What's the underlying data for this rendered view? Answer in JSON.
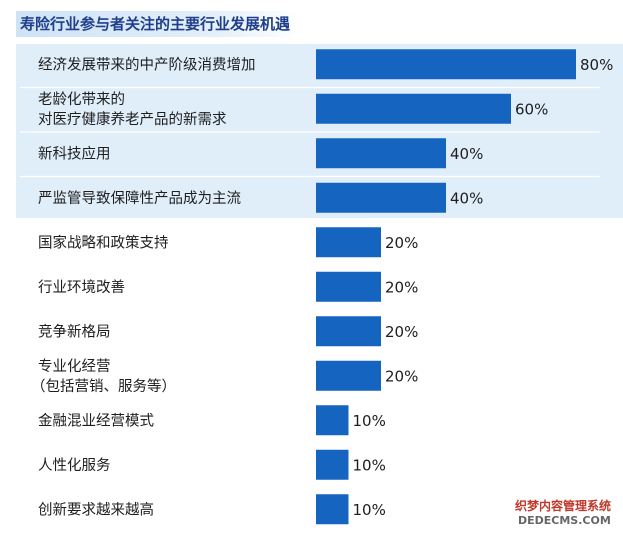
{
  "title": "寿险行业参与者关注的主要行业发展机遇",
  "watermark": {
    "line1": "织梦内容管理系统",
    "line2": "DEDECMS.COM"
  },
  "colors": {
    "bar": "#1565c0",
    "highlight": "#e0eefa",
    "title_text": "#1f3f8a"
  },
  "chart_data": {
    "type": "bar",
    "orientation": "horizontal",
    "value_unit": "%",
    "xlim": [
      0,
      80
    ],
    "grid": false,
    "highlighted_categories": 4,
    "categories": [
      [
        "经济发展带来的中产阶级消费增加"
      ],
      [
        "老龄化带来的",
        "对医疗健康养老产品的新需求"
      ],
      [
        "新科技应用"
      ],
      [
        "严监管导致保障性产品成为主流"
      ],
      [
        "国家战略和政策支持"
      ],
      [
        "行业环境改善"
      ],
      [
        "竞争新格局"
      ],
      [
        "专业化经营",
        "（包括营销、服务等）"
      ],
      [
        "金融混业经营模式"
      ],
      [
        "人性化服务"
      ],
      [
        "创新要求越来越高"
      ]
    ],
    "values": [
      80,
      60,
      40,
      40,
      20,
      20,
      20,
      20,
      10,
      10,
      10
    ]
  }
}
